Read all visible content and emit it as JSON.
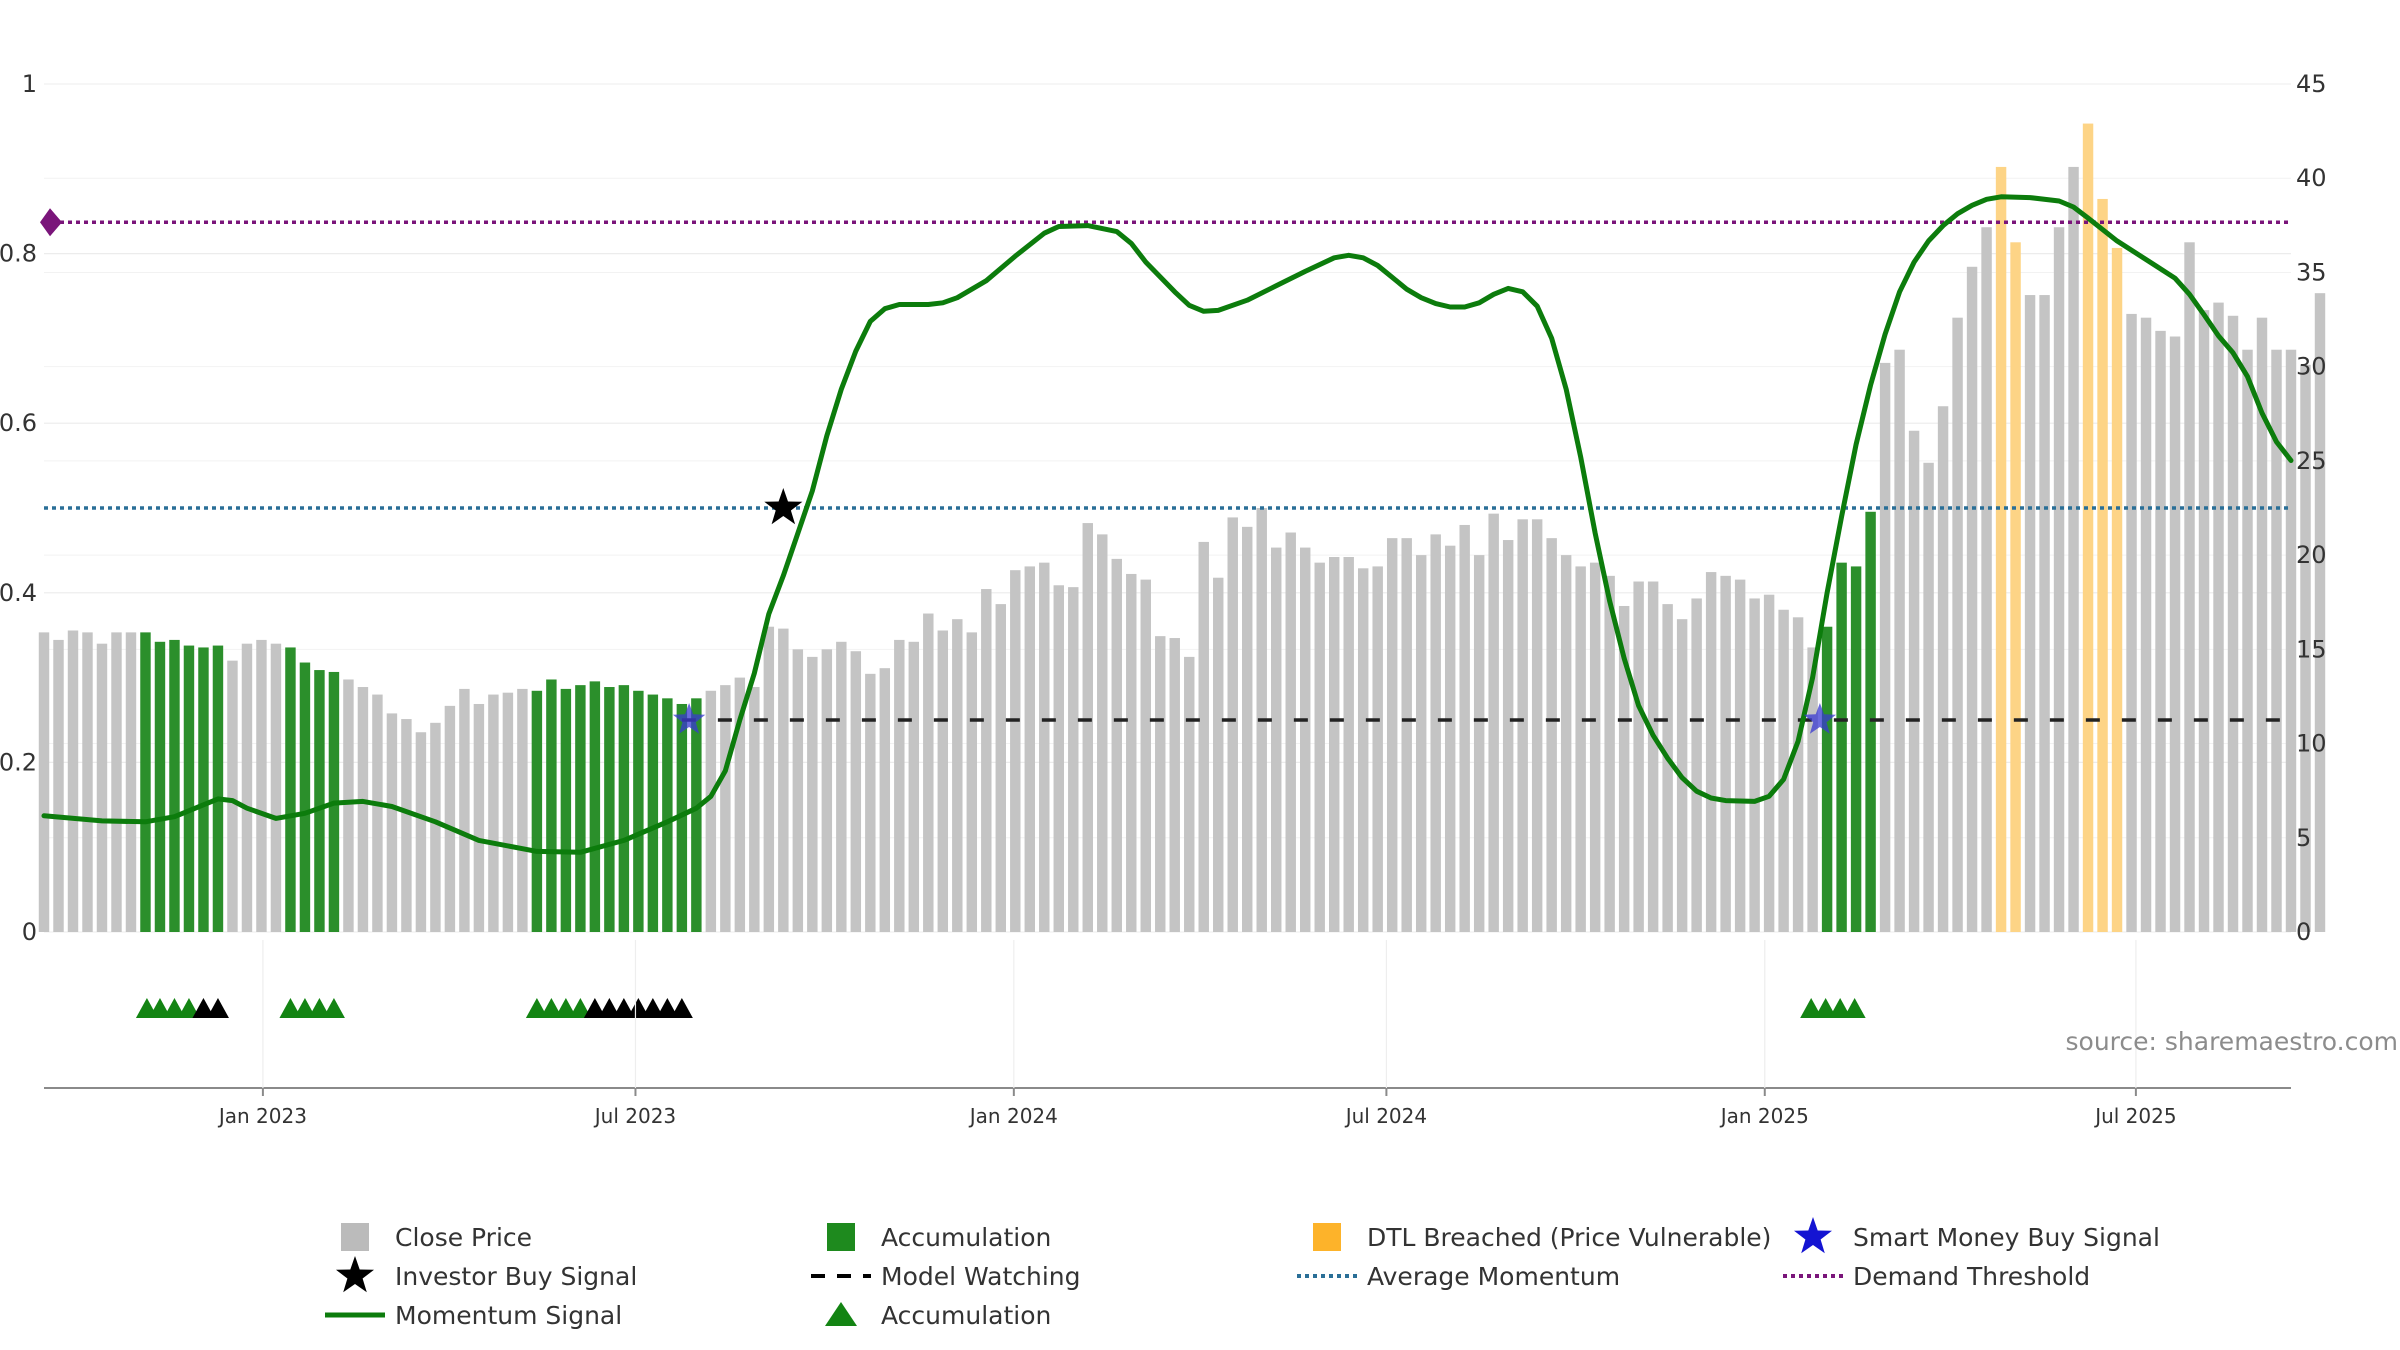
{
  "chart_data": {
    "type": "bar",
    "title": "",
    "source_label": "source: sharemaestro.com",
    "left_axis": {
      "ylim": [
        0,
        1
      ],
      "ticks": [
        "0",
        "0.2",
        "0.4",
        "0.6",
        "0.8",
        "1"
      ],
      "tick_values": [
        0,
        0.2,
        0.4,
        0.6,
        0.8,
        1
      ]
    },
    "right_axis": {
      "ylim": [
        0,
        45
      ],
      "ticks": [
        "0",
        "5",
        "10",
        "15",
        "20",
        "25",
        "30",
        "35",
        "40",
        "45"
      ],
      "tick_values": [
        0,
        5,
        10,
        15,
        20,
        25,
        30,
        35,
        40,
        45
      ]
    },
    "x_axis": {
      "start_index": 0,
      "end_index": 155,
      "date_labels": [
        {
          "label": "Jan 2023",
          "index": 15.1
        },
        {
          "label": "Jul 2023",
          "index": 40.8
        },
        {
          "label": "Jan 2024",
          "index": 66.9
        },
        {
          "label": "Jul 2024",
          "index": 92.6
        },
        {
          "label": "Jan 2025",
          "index": 118.7
        },
        {
          "label": "Jul 2025",
          "index": 144.3
        }
      ]
    },
    "close_price": [
      15.9,
      15.5,
      16.0,
      15.9,
      15.3,
      15.9,
      15.9,
      15.9,
      15.4,
      15.5,
      15.2,
      15.1,
      15.2,
      14.4,
      15.3,
      15.5,
      15.3,
      15.1,
      14.3,
      13.9,
      13.8,
      13.4,
      13.0,
      12.6,
      11.6,
      11.3,
      10.6,
      11.1,
      12.0,
      12.9,
      12.1,
      12.6,
      12.7,
      12.9,
      12.8,
      13.4,
      12.9,
      13.1,
      13.3,
      13.0,
      13.1,
      12.8,
      12.6,
      12.4,
      12.1,
      12.4,
      12.8,
      13.1,
      13.5,
      13.0,
      16.2,
      16.1,
      15.0,
      14.6,
      15.0,
      15.4,
      14.9,
      13.7,
      14.0,
      15.5,
      15.4,
      16.9,
      16.0,
      16.6,
      15.9,
      18.2,
      17.4,
      19.2,
      19.4,
      19.6,
      18.4,
      18.3,
      21.7,
      21.1,
      19.8,
      19.0,
      18.7,
      15.7,
      15.6,
      14.6,
      20.7,
      18.8,
      22.0,
      21.5,
      22.5,
      20.4,
      21.2,
      20.4,
      19.6,
      19.9,
      19.9,
      19.3,
      19.4,
      20.9,
      20.9,
      20.0,
      21.1,
      20.5,
      21.6,
      20.0,
      22.2,
      20.8,
      21.9,
      21.9,
      20.9,
      20.0,
      19.4,
      19.6,
      18.9,
      17.3,
      18.6,
      18.6,
      17.4,
      16.6,
      17.7,
      19.1,
      18.9,
      18.7,
      17.7,
      17.9,
      17.1,
      16.7,
      15.1,
      16.2,
      19.6,
      19.4,
      22.3,
      30.2,
      30.9,
      26.6,
      24.9,
      27.9,
      32.6,
      35.3,
      37.4,
      40.6,
      36.6,
      33.8,
      33.8,
      37.4,
      40.6,
      42.9,
      38.9,
      36.3,
      32.8,
      32.6,
      31.9,
      31.6,
      36.6,
      33.0,
      33.4,
      32.7,
      30.9,
      32.6,
      30.9,
      30.9,
      30.1,
      33.9
    ],
    "dtl_breached": [
      0,
      0,
      0,
      0,
      0,
      0,
      0,
      0,
      0,
      0,
      0,
      0,
      0,
      0,
      0,
      0,
      0,
      0,
      0,
      0,
      0,
      0,
      0,
      0,
      0,
      0,
      0,
      0,
      0,
      0,
      0,
      0,
      0,
      0,
      0,
      0,
      0,
      0,
      0,
      0,
      0,
      0,
      0,
      0,
      0,
      0,
      0,
      0,
      0,
      0,
      0,
      0,
      0,
      0,
      0,
      0,
      0,
      0,
      0,
      0,
      0,
      0,
      0,
      0,
      0,
      0,
      0,
      0,
      0,
      0,
      0,
      0,
      0,
      0,
      0,
      0,
      0,
      0,
      0,
      0,
      0,
      0,
      0,
      0,
      0,
      0,
      0,
      0,
      0,
      0,
      0,
      0,
      0,
      0,
      0,
      0,
      0,
      0,
      0,
      0,
      0,
      0,
      0,
      0,
      0,
      0,
      0,
      0,
      0,
      0,
      0,
      0,
      0,
      0,
      0,
      0,
      0,
      0,
      0,
      0,
      0,
      0,
      0,
      0,
      0,
      0,
      0,
      0,
      0,
      0,
      0,
      0,
      0,
      0,
      0,
      1,
      1,
      0,
      0,
      0,
      0,
      1,
      1,
      1,
      0,
      0,
      0,
      0,
      0,
      0,
      0,
      0,
      0,
      0,
      0,
      0
    ],
    "accumulation_bars": [
      0,
      0,
      0,
      0,
      0,
      0,
      0,
      1,
      1,
      1,
      1,
      1,
      1,
      0,
      0,
      0,
      0,
      1,
      1,
      1,
      1,
      0,
      0,
      0,
      0,
      0,
      0,
      0,
      0,
      0,
      0,
      0,
      0,
      0,
      1,
      1,
      1,
      1,
      1,
      1,
      1,
      1,
      1,
      1,
      1,
      1,
      0,
      0,
      0,
      0,
      0,
      0,
      0,
      0,
      0,
      0,
      0,
      0,
      0,
      0,
      0,
      0,
      0,
      0,
      0,
      0,
      0,
      0,
      0,
      0,
      0,
      0,
      0,
      0,
      0,
      0,
      0,
      0,
      0,
      0,
      0,
      0,
      0,
      0,
      0,
      0,
      0,
      0,
      0,
      0,
      0,
      0,
      0,
      0,
      0,
      0,
      0,
      0,
      0,
      0,
      0,
      0,
      0,
      0,
      0,
      0,
      0,
      0,
      0,
      0,
      0,
      0,
      0,
      0,
      0,
      0,
      0,
      0,
      0,
      0,
      0,
      0,
      0,
      1,
      1,
      1,
      1,
      0,
      0,
      0,
      0,
      0,
      0,
      0,
      0,
      0,
      0,
      0,
      0,
      0,
      0,
      0,
      0,
      0,
      0,
      0,
      0,
      0,
      0,
      0,
      0,
      0,
      0,
      0,
      0,
      0
    ],
    "momentum_signal": [
      [
        0,
        0.137
      ],
      [
        4,
        0.131
      ],
      [
        7,
        0.13
      ],
      [
        9,
        0.136
      ],
      [
        11,
        0.15
      ],
      [
        12,
        0.157
      ],
      [
        13,
        0.155
      ],
      [
        14,
        0.146
      ],
      [
        16,
        0.134
      ],
      [
        18,
        0.14
      ],
      [
        20,
        0.152
      ],
      [
        22,
        0.154
      ],
      [
        24,
        0.148
      ],
      [
        27,
        0.13
      ],
      [
        30,
        0.108
      ],
      [
        34,
        0.095
      ],
      [
        37,
        0.094
      ],
      [
        40,
        0.108
      ],
      [
        43,
        0.13
      ],
      [
        45,
        0.146
      ],
      [
        46,
        0.16
      ],
      [
        47,
        0.19
      ],
      [
        48,
        0.25
      ],
      [
        49,
        0.305
      ],
      [
        50,
        0.375
      ],
      [
        51,
        0.42
      ],
      [
        52,
        0.47
      ],
      [
        53,
        0.52
      ],
      [
        54,
        0.585
      ],
      [
        55,
        0.64
      ],
      [
        56,
        0.685
      ],
      [
        57,
        0.72
      ],
      [
        58,
        0.735
      ],
      [
        59,
        0.74
      ],
      [
        61,
        0.74
      ],
      [
        62,
        0.742
      ],
      [
        63,
        0.748
      ],
      [
        65,
        0.768
      ],
      [
        67,
        0.797
      ],
      [
        69,
        0.824
      ],
      [
        70,
        0.832
      ],
      [
        72,
        0.833
      ],
      [
        74,
        0.826
      ],
      [
        75,
        0.812
      ],
      [
        76,
        0.79
      ],
      [
        78,
        0.755
      ],
      [
        79,
        0.739
      ],
      [
        80,
        0.732
      ],
      [
        81,
        0.733
      ],
      [
        83,
        0.745
      ],
      [
        85,
        0.762
      ],
      [
        87,
        0.779
      ],
      [
        89,
        0.795
      ],
      [
        90,
        0.798
      ],
      [
        91,
        0.795
      ],
      [
        92,
        0.786
      ],
      [
        93,
        0.772
      ],
      [
        94,
        0.758
      ],
      [
        95,
        0.748
      ],
      [
        96,
        0.741
      ],
      [
        97,
        0.737
      ],
      [
        98,
        0.737
      ],
      [
        99,
        0.742
      ],
      [
        100,
        0.752
      ],
      [
        101,
        0.759
      ],
      [
        102,
        0.755
      ],
      [
        103,
        0.738
      ],
      [
        104,
        0.7
      ],
      [
        105,
        0.64
      ],
      [
        106,
        0.56
      ],
      [
        107,
        0.47
      ],
      [
        108,
        0.39
      ],
      [
        109,
        0.323
      ],
      [
        110,
        0.267
      ],
      [
        111,
        0.232
      ],
      [
        112,
        0.205
      ],
      [
        113,
        0.182
      ],
      [
        114,
        0.166
      ],
      [
        115,
        0.158
      ],
      [
        116,
        0.155
      ],
      [
        118,
        0.154
      ],
      [
        119,
        0.16
      ],
      [
        120,
        0.18
      ],
      [
        121,
        0.225
      ],
      [
        122,
        0.3
      ],
      [
        123,
        0.4
      ],
      [
        124,
        0.49
      ],
      [
        125,
        0.575
      ],
      [
        126,
        0.645
      ],
      [
        127,
        0.705
      ],
      [
        128,
        0.755
      ],
      [
        129,
        0.79
      ],
      [
        130,
        0.815
      ],
      [
        131,
        0.833
      ],
      [
        132,
        0.847
      ],
      [
        133,
        0.857
      ],
      [
        134,
        0.864
      ],
      [
        135,
        0.867
      ],
      [
        137,
        0.866
      ],
      [
        139,
        0.862
      ],
      [
        140,
        0.855
      ],
      [
        141,
        0.842
      ],
      [
        143,
        0.815
      ],
      [
        145,
        0.793
      ],
      [
        147,
        0.771
      ],
      [
        148,
        0.752
      ],
      [
        149,
        0.728
      ],
      [
        150,
        0.703
      ],
      [
        151,
        0.683
      ],
      [
        152,
        0.655
      ],
      [
        153,
        0.612
      ],
      [
        154,
        0.578
      ],
      [
        155,
        0.556
      ]
    ],
    "average_momentum": 0.5,
    "demand_threshold": 0.837,
    "model_watching": {
      "value": 0.25,
      "from_index": 44,
      "to_index": 155
    },
    "investor_buy_signal": [
      {
        "index": 51,
        "value": 0.5
      }
    ],
    "smart_money_buy_signal": [
      {
        "index": 44.5,
        "value": 0.25
      },
      {
        "index": 122.5,
        "value": 0.25
      }
    ],
    "accumulation_markers": [
      {
        "index": 7.1,
        "color": "green"
      },
      {
        "index": 8.0,
        "color": "green"
      },
      {
        "index": 9.0,
        "color": "green"
      },
      {
        "index": 10.0,
        "color": "green"
      },
      {
        "index": 11.0,
        "color": "black"
      },
      {
        "index": 12.0,
        "color": "black"
      },
      {
        "index": 17.0,
        "color": "green"
      },
      {
        "index": 18.0,
        "color": "green"
      },
      {
        "index": 19.0,
        "color": "green"
      },
      {
        "index": 20.0,
        "color": "green"
      },
      {
        "index": 34.0,
        "color": "green"
      },
      {
        "index": 35.0,
        "color": "green"
      },
      {
        "index": 36.0,
        "color": "green"
      },
      {
        "index": 37.0,
        "color": "green"
      },
      {
        "index": 38.0,
        "color": "black"
      },
      {
        "index": 39.0,
        "color": "black"
      },
      {
        "index": 40.0,
        "color": "black"
      },
      {
        "index": 41.0,
        "color": "black"
      },
      {
        "index": 42.0,
        "color": "black"
      },
      {
        "index": 43.0,
        "color": "black"
      },
      {
        "index": 44.0,
        "color": "black"
      },
      {
        "index": 121.9,
        "color": "green"
      },
      {
        "index": 122.9,
        "color": "green"
      },
      {
        "index": 123.9,
        "color": "green"
      },
      {
        "index": 124.9,
        "color": "green"
      }
    ],
    "legend": [
      {
        "label": "Close Price",
        "symbol": "square",
        "color": "#bbbbbb"
      },
      {
        "label": "Accumulation",
        "symbol": "square",
        "color": "#1e8a1e"
      },
      {
        "label": "DTL Breached (Price Vulnerable)",
        "symbol": "square",
        "color": "#fdb32a"
      },
      {
        "label": "Smart Money Buy Signal",
        "symbol": "star",
        "color": "#1414d2"
      },
      {
        "label": "Investor Buy Signal",
        "symbol": "star",
        "color": "#000000"
      },
      {
        "label": "Model Watching",
        "symbol": "dash",
        "color": "#000000"
      },
      {
        "label": "Average Momentum",
        "symbol": "dotted",
        "color": "#2a6f97"
      },
      {
        "label": "Demand Threshold",
        "symbol": "dotted",
        "color": "#7a157a"
      },
      {
        "label": "Momentum Signal",
        "symbol": "line",
        "color": "#0c7c0c"
      },
      {
        "label": "Accumulation",
        "symbol": "triangle",
        "color": "#138413"
      }
    ],
    "colors": {
      "close_price": "#c4c4c4",
      "accumulation_bar": "#2b8f2b",
      "dtl_breached": "#fdd486",
      "momentum": "#0c7c0c",
      "average_momentum": "#2a6f97",
      "demand_threshold": "#7a157a",
      "model_watching": "#222222",
      "smart_money": "#3a3ad2",
      "investor": "#000000",
      "marker_green": "#138413",
      "marker_black": "#000000"
    }
  }
}
